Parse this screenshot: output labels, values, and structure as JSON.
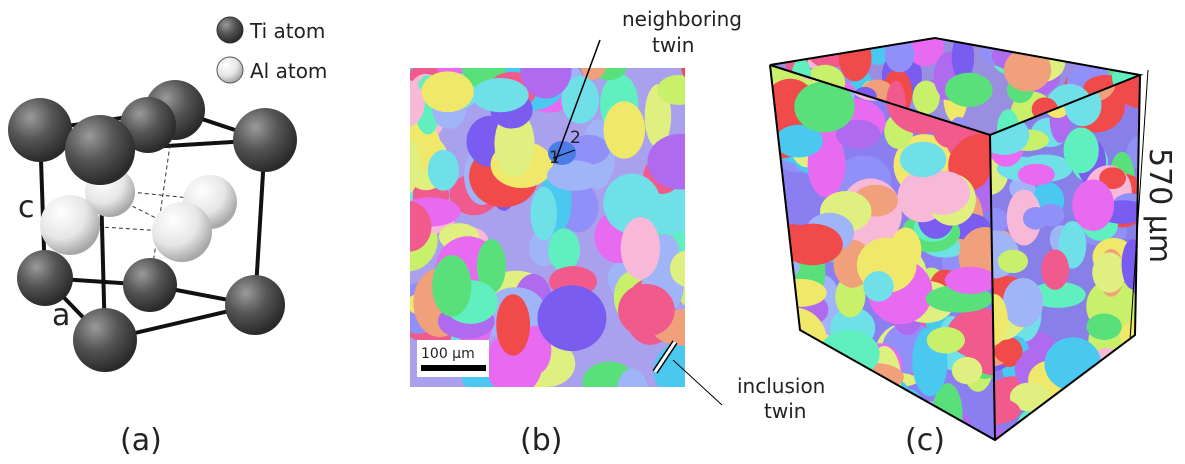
{
  "panel_a": {
    "legend": {
      "ti": "Ti atom",
      "al": "Al atom"
    },
    "lattice_labels": {
      "c": "c",
      "a": "a"
    },
    "caption": "(a)"
  },
  "panel_b": {
    "annotations": {
      "neighboring": [
        "neighboring",
        "twin"
      ],
      "inclusion": [
        "inclusion",
        "twin"
      ]
    },
    "grain_labels": [
      "1",
      "2"
    ],
    "scale_bar": "100 μm",
    "caption": "(b)"
  },
  "panel_c": {
    "dimension": "570 μm",
    "caption": "(c)"
  }
}
